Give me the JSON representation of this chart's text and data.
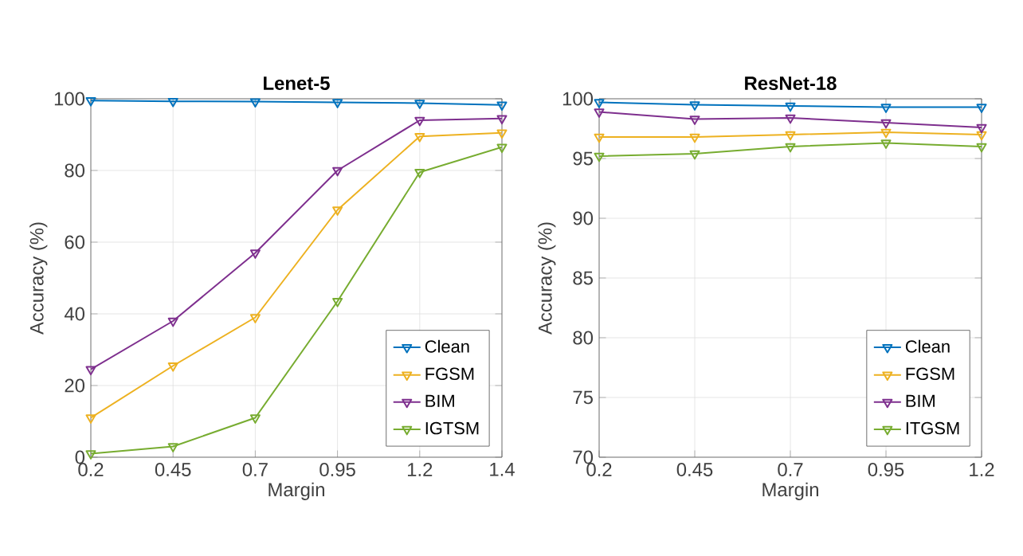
{
  "chart_data": [
    {
      "type": "line",
      "title": "Lenet-5",
      "xlabel": "Margin",
      "ylabel": "Accuracy (%)",
      "categories": [
        "0.2",
        "0.45",
        "0.7",
        "0.95",
        "1.2",
        "1.4"
      ],
      "ylim": [
        0,
        100
      ],
      "yticks": [
        0,
        20,
        40,
        60,
        80,
        100
      ],
      "grid": true,
      "legend": "bottom right",
      "marker": "triangle",
      "line_style": "solid",
      "series": [
        {
          "name": "Clean",
          "color": "#0072bd",
          "values": [
            99.5,
            99.3,
            99.2,
            99,
            98.8,
            98.3
          ]
        },
        {
          "name": "FGSM",
          "color": "#edb120",
          "values": [
            11,
            25.5,
            39,
            69,
            89.5,
            90.5
          ]
        },
        {
          "name": "BIM",
          "color": "#7e2f8e",
          "values": [
            24.5,
            38,
            57,
            80,
            94,
            94.5
          ]
        },
        {
          "name": "IGTSM",
          "color": "#77ac30",
          "values": [
            1,
            3,
            11,
            43.5,
            79.5,
            86.5
          ]
        }
      ]
    },
    {
      "type": "line",
      "title": "ResNet-18",
      "xlabel": "Margin",
      "ylabel": "Accuracy (%)",
      "categories": [
        "0.2",
        "0.45",
        "0.7",
        "0.95",
        "1.2"
      ],
      "ylim": [
        70,
        100
      ],
      "yticks": [
        70,
        75,
        80,
        85,
        90,
        95,
        100
      ],
      "grid": true,
      "legend": "bottom right",
      "marker": "triangle",
      "line_style": "solid",
      "series": [
        {
          "name": "Clean",
          "color": "#0072bd",
          "values": [
            99.7,
            99.5,
            99.4,
            99.3,
            99.3
          ]
        },
        {
          "name": "FGSM",
          "color": "#edb120",
          "values": [
            96.8,
            96.8,
            97.0,
            97.2,
            97.0
          ]
        },
        {
          "name": "BIM",
          "color": "#7e2f8e",
          "values": [
            98.9,
            98.3,
            98.4,
            98.0,
            97.6
          ]
        },
        {
          "name": "ITGSM",
          "color": "#77ac30",
          "values": [
            95.2,
            95.4,
            96.0,
            96.3,
            96.0
          ]
        }
      ]
    }
  ]
}
